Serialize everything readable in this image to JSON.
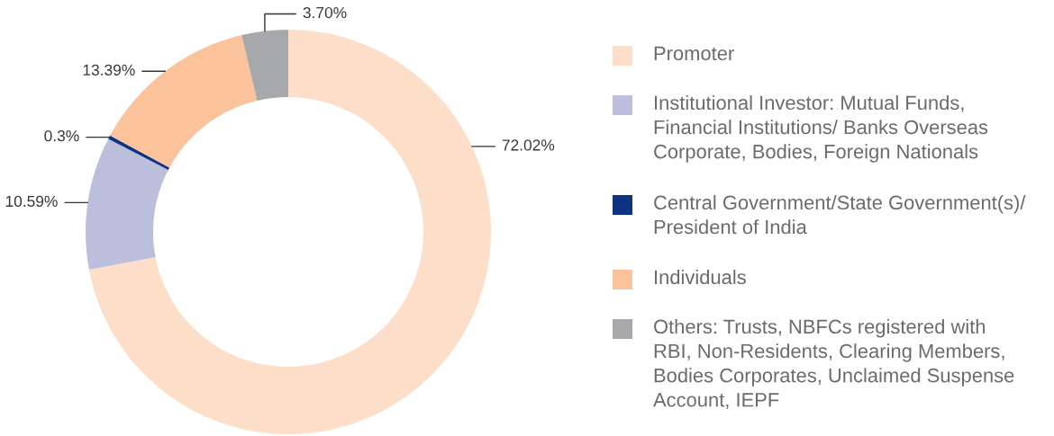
{
  "chart_data": {
    "type": "donut",
    "categories": [
      "Promoter",
      "Institutional Investor: Mutual Funds,\nFinancial Institutions/ Banks Overseas\nCorporate, Bodies, Foreign Nationals",
      "Central Government/State Government(s)/\nPresident of India",
      "Individuals",
      "Others: Trusts, NBFCs registered with\nRBI, Non-Residents, Clearing Members,\nBodies Corporates, Unclaimed Suspense\nAccount, IEPF"
    ],
    "values": [
      72.02,
      10.59,
      0.3,
      13.39,
      3.7
    ],
    "colors": [
      "#fddec8",
      "#bbbfdb",
      "#0d3480",
      "#fbc39c",
      "#a7a8ab"
    ],
    "value_labels": [
      "72.02%",
      "10.59%",
      "0.3%",
      "13.39%",
      "3.70%"
    ],
    "legend": "right"
  }
}
